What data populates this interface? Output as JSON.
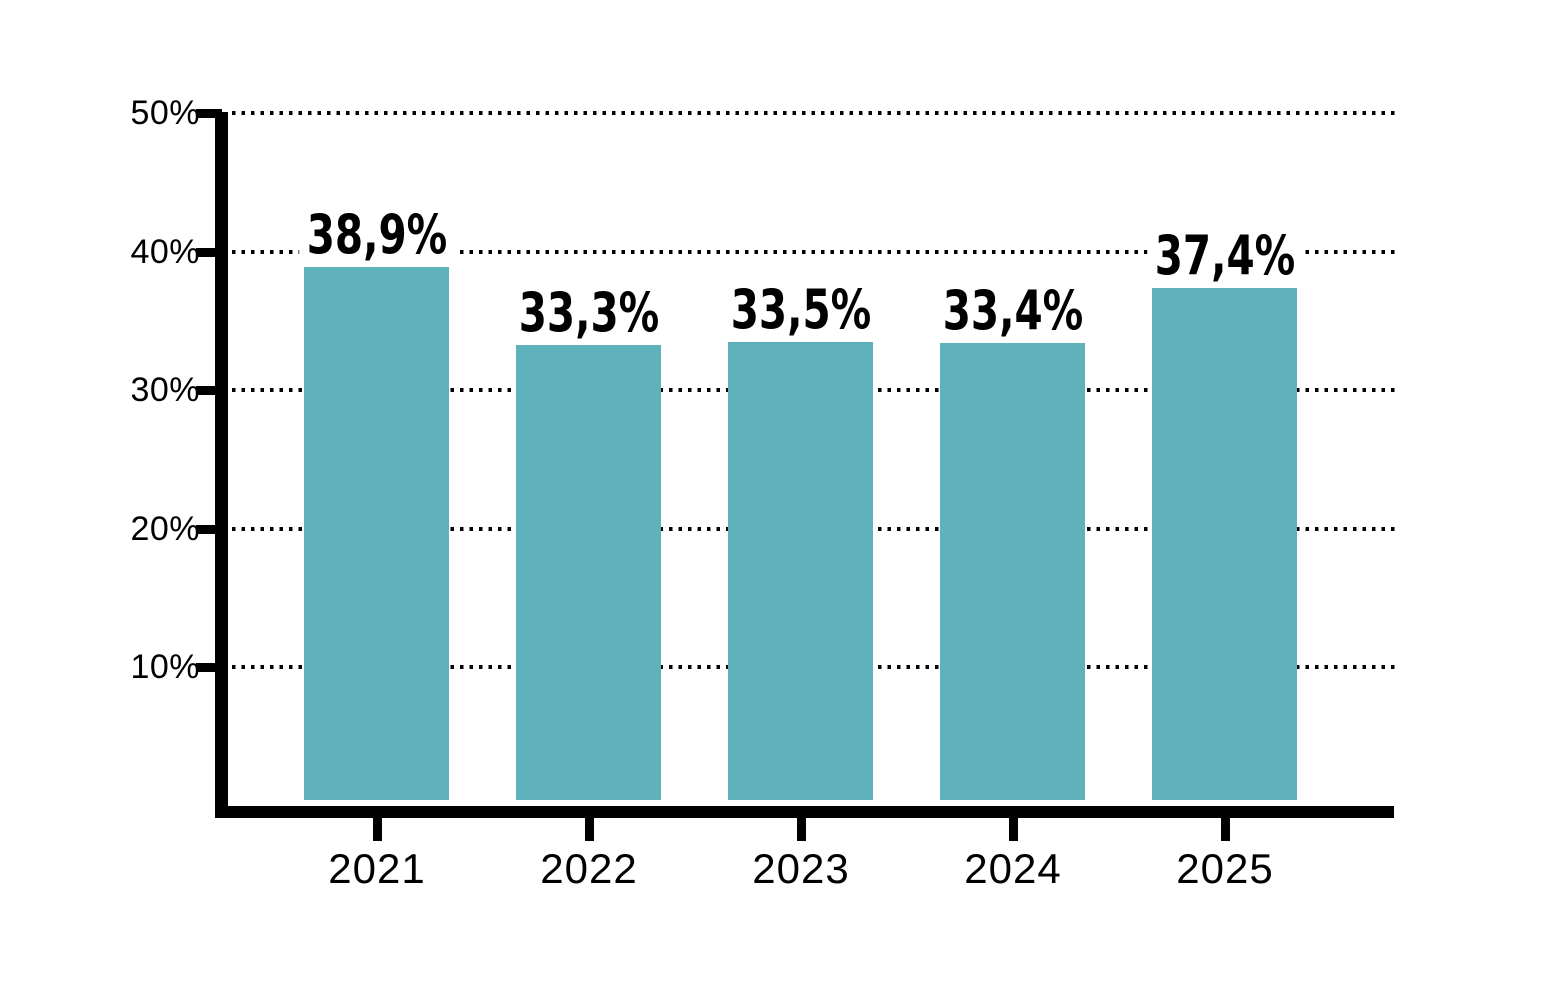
{
  "chart_data": {
    "type": "bar",
    "categories": [
      "2021",
      "2022",
      "2023",
      "2024",
      "2025"
    ],
    "values": [
      38.9,
      33.3,
      33.5,
      33.4,
      37.4
    ],
    "value_labels": [
      "38,9%",
      "33,3%",
      "33,5%",
      "33,4%",
      "37,4%"
    ],
    "y_axis": {
      "tick_labels": [
        "50%",
        "40%",
        "30%",
        "20%",
        "10%"
      ],
      "tick_values": [
        50,
        40,
        30,
        20,
        10
      ],
      "min": 0,
      "max": 50,
      "unit": "%"
    },
    "decimal_separator": ",",
    "legend_visible": false,
    "grid": {
      "horizontal": true,
      "style": "dotted"
    },
    "colors": {
      "bar": "#5fb1bc",
      "axis": "#000000",
      "text": "#000000",
      "background": "#ffffff"
    }
  }
}
